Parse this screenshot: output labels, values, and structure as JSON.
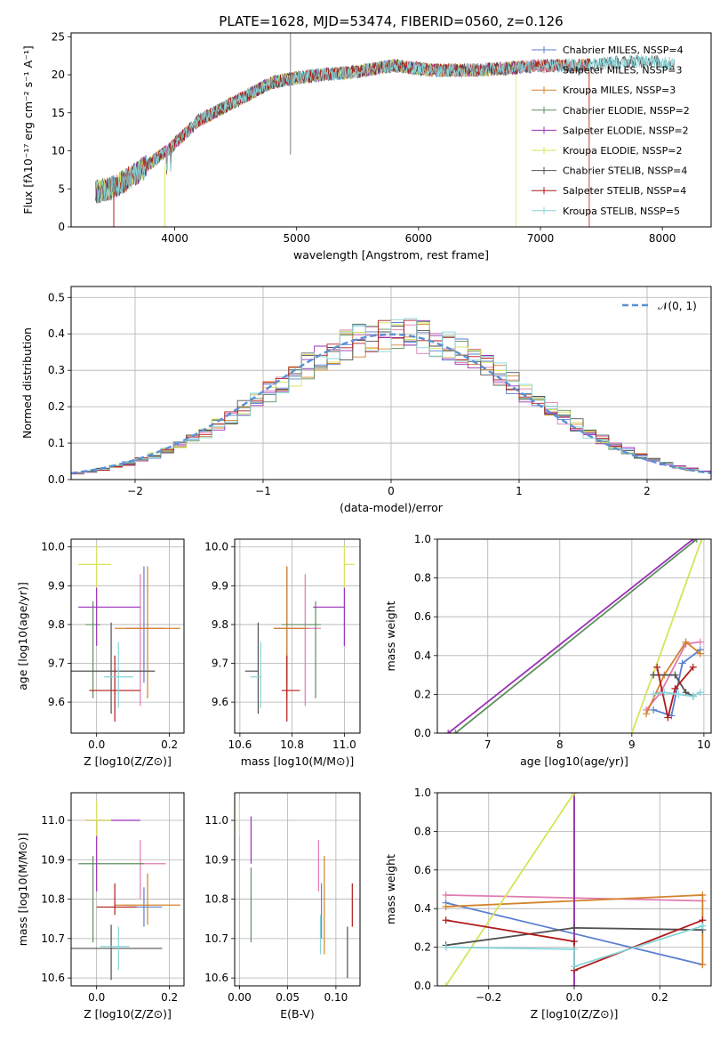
{
  "figure_title": "PLATE=1628, MJD=53474, FIBERID=0560, z=0.126",
  "colors": {
    "chabrier_miles": "#5b7fd1",
    "salpeter_miles": "#e07bb0",
    "kroupa_miles": "#d4832c",
    "chabrier_elodie": "#5e8f5e",
    "salpeter_elodie": "#9b30b8",
    "kroupa_elodie": "#d7e359",
    "chabrier_stelib": "#505050",
    "salpeter_stelib": "#b01a1a",
    "kroupa_stelib": "#86d4d8",
    "gaussian": "#5b8fd6"
  },
  "chart_data": [
    {
      "id": "spectrum",
      "type": "line",
      "xlabel": "wavelength [Angstrom, rest frame]",
      "ylabel": "Flux [fλ10⁻¹⁷ erg cm⁻² s⁻¹ A⁻¹]",
      "xlim": [
        3150,
        8400
      ],
      "ylim": [
        0,
        25.5
      ],
      "xticks": [
        4000,
        5000,
        6000,
        7000,
        8000
      ],
      "yticks": [
        0,
        5,
        10,
        15,
        20,
        25
      ],
      "legend_position": "right",
      "legend": [
        "Chabrier MILES, NSSP=4",
        "Salpeter MILES, NSSP=3",
        "Kroupa MILES, NSSP=3",
        "Chabrier ELODIE, NSSP=2",
        "Salpeter ELODIE, NSSP=2",
        "Kroupa ELODIE, NSSP=2",
        "Chabrier STELIB, NSSP=4",
        "Salpeter STELIB, NSSP=4",
        "Kroupa STELIB, NSSP=5"
      ],
      "envelope": {
        "x": [
          3350,
          3500,
          3700,
          3950,
          4200,
          4500,
          4800,
          5000,
          5200,
          5500,
          5800,
          6100,
          6400,
          6700,
          7000,
          7300,
          7600,
          7900,
          8100
        ],
        "y": [
          4.6,
          5.2,
          7.2,
          10.2,
          14.0,
          16.5,
          19.0,
          19.6,
          20.0,
          20.4,
          21.2,
          20.6,
          20.6,
          20.8,
          21.2,
          21.2,
          21.6,
          21.8,
          21.4
        ]
      },
      "series_ranges": [
        {
          "key": "chabrier_miles",
          "x": [
            3350,
            7400
          ]
        },
        {
          "key": "salpeter_miles",
          "x": [
            3350,
            7400
          ]
        },
        {
          "key": "kroupa_miles",
          "x": [
            3350,
            7400
          ]
        },
        {
          "key": "chabrier_elodie",
          "x": [
            3350,
            6800
          ]
        },
        {
          "key": "salpeter_elodie",
          "x": [
            3350,
            6800
          ]
        },
        {
          "key": "kroupa_elodie",
          "x": [
            3350,
            6800
          ]
        },
        {
          "key": "chabrier_stelib",
          "x": [
            3350,
            8100
          ]
        },
        {
          "key": "salpeter_stelib",
          "x": [
            3500,
            7400
          ]
        },
        {
          "key": "kroupa_stelib",
          "x": [
            3350,
            8100
          ]
        }
      ]
    },
    {
      "id": "residuals",
      "type": "histogram",
      "xlabel": "(data-model)/error",
      "ylabel": "Normed distribution",
      "xlim": [
        -2.5,
        2.5
      ],
      "ylim": [
        0,
        0.53
      ],
      "xticks": [
        -2,
        -1,
        0,
        1,
        2
      ],
      "yticks": [
        0.0,
        0.1,
        0.2,
        0.3,
        0.4,
        0.5
      ],
      "bin_width": 0.1,
      "legend_position": "top-right",
      "legend": [
        "𝒩(0, 1)"
      ]
    },
    {
      "id": "age_vs_Z",
      "type": "errorbar",
      "xlabel": "Z [log10(Z/Z⊙)]",
      "ylabel": "age  [log10(age/yr)]",
      "xlim": [
        -0.07,
        0.24
      ],
      "ylim": [
        9.52,
        10.02
      ],
      "xticks": [
        0.0,
        0.2
      ],
      "xtick_labels": [
        "0.0",
        "0.2"
      ],
      "yticks": [
        9.6,
        9.7,
        9.8,
        9.9,
        10.0
      ],
      "points": [
        {
          "key": "chabrier_miles",
          "x": 0.13,
          "y": 9.79,
          "xerr": [
            0.05,
            0.05
          ],
          "yerr": [
            0.14,
            0.16
          ]
        },
        {
          "key": "salpeter_miles",
          "x": 0.12,
          "y": 9.79,
          "xerr": [
            0.04,
            0.07
          ],
          "yerr": [
            0.2,
            0.14
          ]
        },
        {
          "key": "kroupa_miles",
          "x": 0.14,
          "y": 9.79,
          "xerr": [
            0.09,
            0.09
          ],
          "yerr": [
            0.18,
            0.16
          ]
        },
        {
          "key": "chabrier_elodie",
          "x": -0.01,
          "y": 9.8,
          "xerr": [
            0.02,
            0.02
          ],
          "yerr": [
            0.19,
            0.06
          ]
        },
        {
          "key": "salpeter_elodie",
          "x": 0.0,
          "y": 9.845,
          "xerr": [
            0.05,
            0.12
          ],
          "yerr": [
            0.1,
            0.05
          ]
        },
        {
          "key": "kroupa_elodie",
          "x": 0.0,
          "y": 9.955,
          "xerr": [
            0.05,
            0.04
          ],
          "yerr": [
            0.06,
            0.05
          ]
        },
        {
          "key": "chabrier_stelib",
          "x": 0.04,
          "y": 9.68,
          "xerr": [
            0.11,
            0.12
          ],
          "yerr": [
            0.11,
            0.125
          ]
        },
        {
          "key": "salpeter_stelib",
          "x": 0.05,
          "y": 9.63,
          "xerr": [
            0.07,
            0.07
          ],
          "yerr": [
            0.08,
            0.09
          ]
        },
        {
          "key": "kroupa_stelib",
          "x": 0.06,
          "y": 9.665,
          "xerr": [
            0.04,
            0.04
          ],
          "yerr": [
            0.08,
            0.09
          ]
        }
      ]
    },
    {
      "id": "age_vs_mass",
      "type": "errorbar",
      "xlabel": "mass [log10(M/M⊙)]",
      "ylabel": "",
      "xlim": [
        10.58,
        11.06
      ],
      "ylim": [
        9.52,
        10.02
      ],
      "xticks": [
        10.6,
        10.8,
        11.0
      ],
      "xtick_labels": [
        "10.6",
        "10.8",
        "11.0"
      ],
      "yticks": [
        9.6,
        9.7,
        9.8,
        9.9,
        10.0
      ],
      "points": [
        {
          "key": "chabrier_miles",
          "x": 10.78,
          "y": 9.79,
          "xerr": [
            0.05,
            0.05
          ],
          "yerr": [
            0.14,
            0.16
          ]
        },
        {
          "key": "salpeter_miles",
          "x": 10.85,
          "y": 9.79,
          "xerr": [
            0.09,
            0.06
          ],
          "yerr": [
            0.2,
            0.14
          ]
        },
        {
          "key": "kroupa_miles",
          "x": 10.78,
          "y": 9.79,
          "xerr": [
            0.05,
            0.08
          ],
          "yerr": [
            0.18,
            0.16
          ]
        },
        {
          "key": "chabrier_elodie",
          "x": 10.89,
          "y": 9.8,
          "xerr": [
            0.13,
            0.02
          ],
          "yerr": [
            0.19,
            0.06
          ]
        },
        {
          "key": "salpeter_elodie",
          "x": 11.0,
          "y": 9.845,
          "xerr": [
            0.12,
            0.0
          ],
          "yerr": [
            0.1,
            0.05
          ]
        },
        {
          "key": "kroupa_elodie",
          "x": 11.0,
          "y": 9.955,
          "xerr": [
            0.0,
            0.04
          ],
          "yerr": [
            0.06,
            0.05
          ]
        },
        {
          "key": "chabrier_stelib",
          "x": 10.67,
          "y": 9.68,
          "xerr": [
            0.05,
            0.0
          ],
          "yerr": [
            0.11,
            0.125
          ]
        },
        {
          "key": "salpeter_stelib",
          "x": 10.78,
          "y": 9.63,
          "xerr": [
            0.02,
            0.05
          ],
          "yerr": [
            0.08,
            0.09
          ]
        },
        {
          "key": "kroupa_stelib",
          "x": 10.68,
          "y": 9.665,
          "xerr": [
            0.04,
            0.0
          ],
          "yerr": [
            0.08,
            0.09
          ]
        }
      ]
    },
    {
      "id": "weight_vs_age",
      "type": "line",
      "xlabel": "age  [log10(age/yr)]",
      "ylabel": "mass weight",
      "xlim": [
        6.3,
        10.1
      ],
      "ylim": [
        0,
        1.0
      ],
      "xticks": [
        7,
        8,
        9,
        10
      ],
      "xtick_labels": [
        "7",
        "8",
        "9",
        "10"
      ],
      "yticks": [
        0.0,
        0.2,
        0.4,
        0.6,
        0.8,
        1.0
      ],
      "series": [
        {
          "key": "chabrier_miles",
          "x": [
            9.3,
            9.55,
            9.7,
            9.95
          ],
          "y": [
            0.12,
            0.09,
            0.36,
            0.43
          ]
        },
        {
          "key": "salpeter_miles",
          "x": [
            9.2,
            9.4,
            9.75,
            9.95
          ],
          "y": [
            0.12,
            0.21,
            0.46,
            0.47
          ]
        },
        {
          "key": "kroupa_miles",
          "x": [
            9.2,
            9.45,
            9.75,
            9.95
          ],
          "y": [
            0.1,
            0.3,
            0.47,
            0.41
          ]
        },
        {
          "key": "chabrier_elodie",
          "x": [
            6.55,
            9.9
          ],
          "y": [
            0.0,
            1.0
          ]
        },
        {
          "key": "salpeter_elodie",
          "x": [
            6.45,
            9.85
          ],
          "y": [
            0.0,
            1.0
          ]
        },
        {
          "key": "kroupa_elodie",
          "x": [
            9.0,
            9.97
          ],
          "y": [
            0.0,
            1.0
          ]
        },
        {
          "key": "chabrier_stelib",
          "x": [
            9.3,
            9.6,
            9.75,
            9.85
          ],
          "y": [
            0.3,
            0.3,
            0.21,
            0.19
          ]
        },
        {
          "key": "salpeter_stelib",
          "x": [
            9.35,
            9.5,
            9.6,
            9.85
          ],
          "y": [
            0.34,
            0.08,
            0.23,
            0.34
          ]
        },
        {
          "key": "kroupa_stelib",
          "x": [
            9.3,
            9.45,
            9.65,
            9.85,
            9.95
          ],
          "y": [
            0.2,
            0.21,
            0.2,
            0.19,
            0.21
          ]
        }
      ]
    },
    {
      "id": "mass_vs_Z",
      "type": "errorbar",
      "xlabel": "Z [log10(Z/Z⊙)]",
      "ylabel": "mass [log10(M/M⊙)]",
      "xlim": [
        -0.07,
        0.24
      ],
      "ylim": [
        10.58,
        11.07
      ],
      "xticks": [
        0.0,
        0.2
      ],
      "xtick_labels": [
        "0.0",
        "0.2"
      ],
      "yticks": [
        10.6,
        10.7,
        10.8,
        10.9,
        11.0
      ],
      "points": [
        {
          "key": "chabrier_miles",
          "x": 0.13,
          "y": 10.78,
          "xerr": [
            0.05,
            0.05
          ],
          "yerr": [
            0.05,
            0.05
          ]
        },
        {
          "key": "salpeter_miles",
          "x": 0.12,
          "y": 10.89,
          "xerr": [
            0.0,
            0.07
          ],
          "yerr": [
            0.09,
            0.06
          ]
        },
        {
          "key": "kroupa_miles",
          "x": 0.14,
          "y": 10.785,
          "xerr": [
            0.09,
            0.09
          ],
          "yerr": [
            0.05,
            0.08
          ]
        },
        {
          "key": "chabrier_elodie",
          "x": -0.01,
          "y": 10.89,
          "xerr": [
            0.04,
            0.14
          ],
          "yerr": [
            0.2,
            0.02
          ]
        },
        {
          "key": "salpeter_elodie",
          "x": 0.0,
          "y": 11.0,
          "xerr": [
            0.03,
            0.12
          ],
          "yerr": [
            0.18,
            0.0
          ]
        },
        {
          "key": "kroupa_elodie",
          "x": 0.0,
          "y": 11.0,
          "xerr": [
            0.03,
            0.04
          ],
          "yerr": [
            0.04,
            0.05
          ]
        },
        {
          "key": "chabrier_stelib",
          "x": 0.04,
          "y": 10.675,
          "xerr": [
            0.11,
            0.14
          ],
          "yerr": [
            0.08,
            0.06
          ]
        },
        {
          "key": "salpeter_stelib",
          "x": 0.05,
          "y": 10.78,
          "xerr": [
            0.05,
            0.06
          ],
          "yerr": [
            0.02,
            0.06
          ]
        },
        {
          "key": "kroupa_stelib",
          "x": 0.06,
          "y": 10.68,
          "xerr": [
            0.05,
            0.03
          ],
          "yerr": [
            0.06,
            0.05
          ]
        }
      ]
    },
    {
      "id": "mass_vs_ebv",
      "type": "errorbar",
      "xlabel": "E(B-V)",
      "ylabel": "",
      "xlim": [
        -0.005,
        0.125
      ],
      "ylim": [
        10.58,
        11.07
      ],
      "xticks": [
        0.0,
        0.05,
        0.1
      ],
      "xtick_labels": [
        "0.00",
        "0.05",
        "0.10"
      ],
      "yticks": [
        10.6,
        10.7,
        10.8,
        10.9,
        11.0
      ],
      "points": [
        {
          "key": "chabrier_miles",
          "x": 0.085,
          "y": 10.78,
          "xerr": [
            0,
            0
          ],
          "yerr": [
            0.08,
            0.06
          ]
        },
        {
          "key": "salpeter_miles",
          "x": 0.082,
          "y": 10.89,
          "xerr": [
            0,
            0
          ],
          "yerr": [
            0.07,
            0.06
          ]
        },
        {
          "key": "kroupa_miles",
          "x": 0.088,
          "y": 10.78,
          "xerr": [
            0,
            0
          ],
          "yerr": [
            0.12,
            0.13
          ]
        },
        {
          "key": "chabrier_elodie",
          "x": 0.012,
          "y": 10.8,
          "xerr": [
            0,
            0
          ],
          "yerr": [
            0.11,
            0.08
          ]
        },
        {
          "key": "salpeter_elodie",
          "x": 0.012,
          "y": 10.95,
          "xerr": [
            0,
            0
          ],
          "yerr": [
            0.06,
            0.06
          ]
        },
        {
          "key": "kroupa_elodie",
          "x": 0.0,
          "y": 11.0,
          "xerr": [
            0,
            0
          ],
          "yerr": [
            0.04,
            0.05
          ]
        },
        {
          "key": "chabrier_stelib",
          "x": 0.112,
          "y": 10.66,
          "xerr": [
            0,
            0
          ],
          "yerr": [
            0.06,
            0.07
          ]
        },
        {
          "key": "salpeter_stelib",
          "x": 0.117,
          "y": 10.78,
          "xerr": [
            0,
            0
          ],
          "yerr": [
            0.05,
            0.06
          ]
        },
        {
          "key": "kroupa_stelib",
          "x": 0.084,
          "y": 10.71,
          "xerr": [
            0,
            0
          ],
          "yerr": [
            0.05,
            0.05
          ]
        }
      ]
    },
    {
      "id": "weight_vs_Z",
      "type": "line",
      "xlabel": "Z [log10(Z/Z⊙)]",
      "ylabel": "mass weight",
      "xlim": [
        -0.32,
        0.32
      ],
      "ylim": [
        0,
        1.0
      ],
      "xticks": [
        -0.2,
        0.0,
        0.2
      ],
      "xtick_labels": [
        "−0.2",
        "0.0",
        "0.2"
      ],
      "yticks": [
        0.0,
        0.2,
        0.4,
        0.6,
        0.8,
        1.0
      ],
      "series": [
        {
          "key": "chabrier_miles",
          "x": [
            -0.3,
            0.3
          ],
          "y": [
            0.43,
            0.11
          ]
        },
        {
          "key": "salpeter_miles",
          "x": [
            -0.3,
            0.3
          ],
          "y": [
            0.47,
            0.44
          ]
        },
        {
          "key": "kroupa_miles",
          "x": [
            -0.3,
            0.3,
            0.3
          ],
          "y": [
            0.41,
            0.47,
            0.11
          ]
        },
        {
          "key": "chabrier_elodie",
          "x": [
            0.0,
            0.0
          ],
          "y": [
            0.0,
            1.0
          ]
        },
        {
          "key": "salpeter_elodie",
          "x": [
            0.0,
            0.0
          ],
          "y": [
            0.0,
            1.0
          ]
        },
        {
          "key": "kroupa_elodie",
          "x": [
            -0.3,
            0.0
          ],
          "y": [
            0.0,
            1.0
          ]
        },
        {
          "key": "chabrier_stelib",
          "x": [
            -0.3,
            0.0,
            0.3
          ],
          "y": [
            0.21,
            0.3,
            0.29
          ]
        },
        {
          "key": "salpeter_stelib",
          "x": [
            -0.3,
            0.0,
            0.0,
            0.3
          ],
          "y": [
            0.34,
            0.23,
            0.08,
            0.34
          ]
        },
        {
          "key": "kroupa_stelib",
          "x": [
            -0.3,
            0.0,
            0.0,
            0.3
          ],
          "y": [
            0.2,
            0.19,
            0.1,
            0.31
          ]
        }
      ]
    }
  ]
}
